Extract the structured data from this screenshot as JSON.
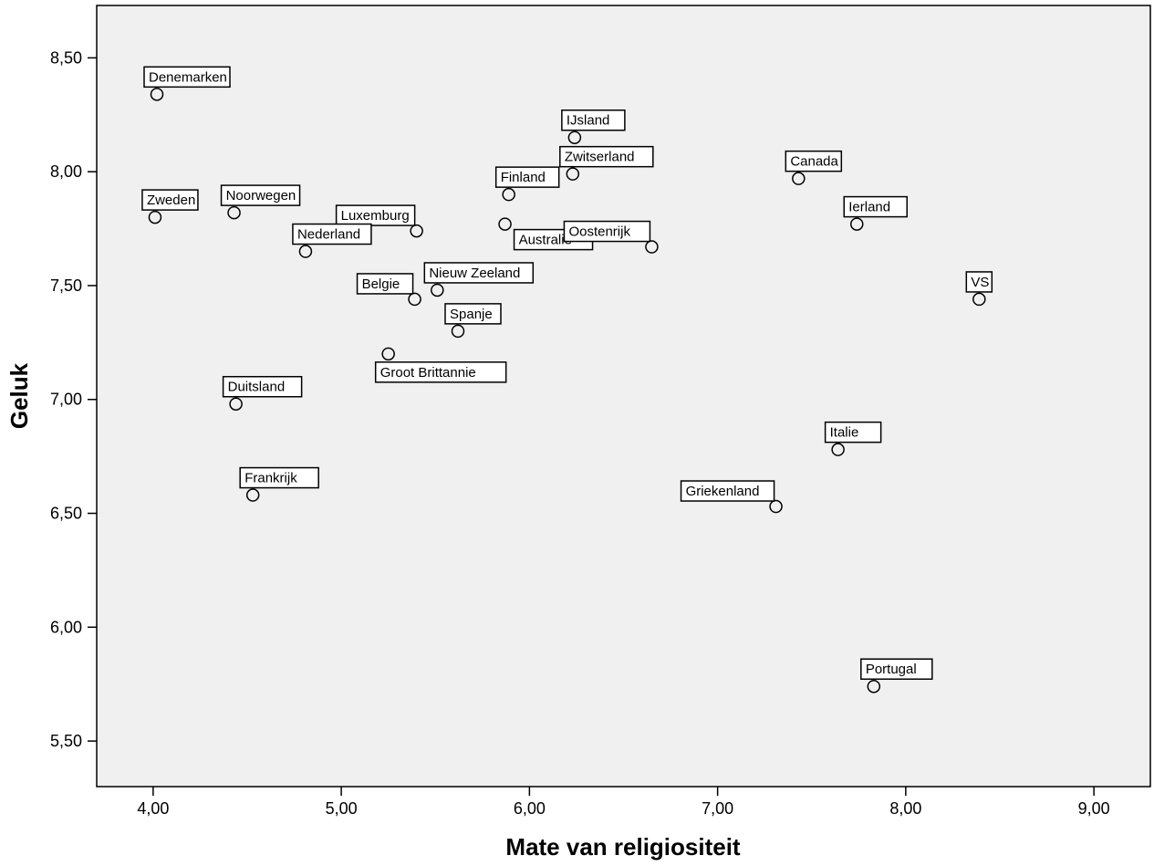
{
  "chart_data": {
    "type": "scatter",
    "title": "",
    "xlabel": "Mate van religiositeit",
    "ylabel": "Geluk",
    "xlim": [
      3.7,
      9.3
    ],
    "ylim": [
      5.3,
      8.73
    ],
    "xticks": [
      "4,00",
      "5,00",
      "6,00",
      "7,00",
      "8,00",
      "9,00"
    ],
    "yticks": [
      "5,50",
      "6,00",
      "6,50",
      "7,00",
      "7,50",
      "8,00",
      "8,50"
    ],
    "grid": false,
    "legend": "none",
    "plot_background": "#f0f0f0",
    "marker_color": "#000000",
    "points": [
      {
        "label": "Denemarken",
        "x": 4.02,
        "y": 8.34
      },
      {
        "label": "IJsland",
        "x": 6.24,
        "y": 8.15
      },
      {
        "label": "Zwitserland",
        "x": 6.23,
        "y": 7.99
      },
      {
        "label": "Canada",
        "x": 7.43,
        "y": 7.97
      },
      {
        "label": "Finland",
        "x": 5.89,
        "y": 7.9
      },
      {
        "label": "Zweden",
        "x": 4.01,
        "y": 7.8
      },
      {
        "label": "Noorwegen",
        "x": 4.43,
        "y": 7.82
      },
      {
        "label": "Ierland",
        "x": 7.74,
        "y": 7.77
      },
      {
        "label": "Australie",
        "x": 5.87,
        "y": 7.77
      },
      {
        "label": "Luxemburg",
        "x": 5.4,
        "y": 7.74
      },
      {
        "label": "Oostenrijk",
        "x": 6.65,
        "y": 7.67
      },
      {
        "label": "Nederland",
        "x": 4.81,
        "y": 7.65
      },
      {
        "label": "Nieuw Zeeland",
        "x": 5.51,
        "y": 7.48
      },
      {
        "label": "Belgie",
        "x": 5.39,
        "y": 7.44
      },
      {
        "label": "VS",
        "x": 8.39,
        "y": 7.44
      },
      {
        "label": "Spanje",
        "x": 5.62,
        "y": 7.3
      },
      {
        "label": "Groot Brittannie",
        "x": 5.25,
        "y": 7.2
      },
      {
        "label": "Duitsland",
        "x": 4.44,
        "y": 6.98
      },
      {
        "label": "Italie",
        "x": 7.64,
        "y": 6.78
      },
      {
        "label": "Frankrijk",
        "x": 4.53,
        "y": 6.58
      },
      {
        "label": "Griekenland",
        "x": 7.31,
        "y": 6.53
      },
      {
        "label": "Portugal",
        "x": 7.83,
        "y": 5.74
      }
    ]
  }
}
